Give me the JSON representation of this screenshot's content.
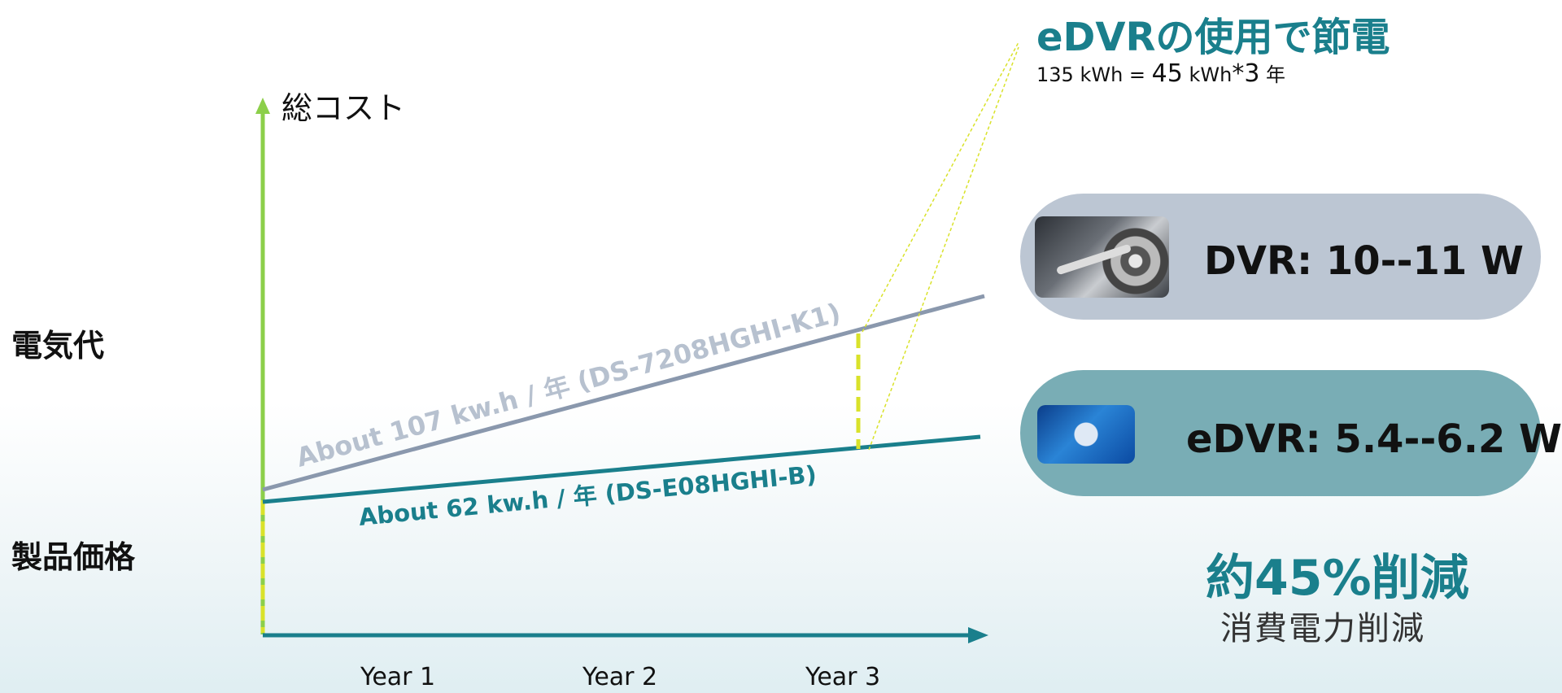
{
  "axis": {
    "y_label": "総コスト",
    "x_ticks": [
      "Year 1",
      "Year 2",
      "Year 3"
    ]
  },
  "side_labels": {
    "electricity": "電気代",
    "product_price": "製品価格"
  },
  "lines": {
    "dvr_label": "About 107 kw.h / 年 (DS-7208HGHI-K1)",
    "edvr_label": "About 62 kw.h / 年 (DS-E08HGHI-B)"
  },
  "headline": {
    "title": "eDVRの使用で節電",
    "formula_a": "135 kWh = ",
    "formula_b": "45",
    "formula_c": " kWh",
    "formula_d": "*3",
    "formula_e": " 年"
  },
  "pills": {
    "dvr": "DVR: 10--11 W",
    "edvr": "eDVR: 5.4--6.2 W"
  },
  "reduction": {
    "main": "約45%削減",
    "sub": "消費電力削減"
  },
  "colors": {
    "y_axis": "#8ccf4a",
    "x_axis": "#1a7f8c",
    "dvr_line": "#8a98ad",
    "edvr_line": "#1a7f8c",
    "dashed": "#d9e22a",
    "accent": "#1a7f8c"
  },
  "icons": {
    "dvr": "hard-disk-drive-photo",
    "edvr": "circuit-chip-photo"
  }
}
